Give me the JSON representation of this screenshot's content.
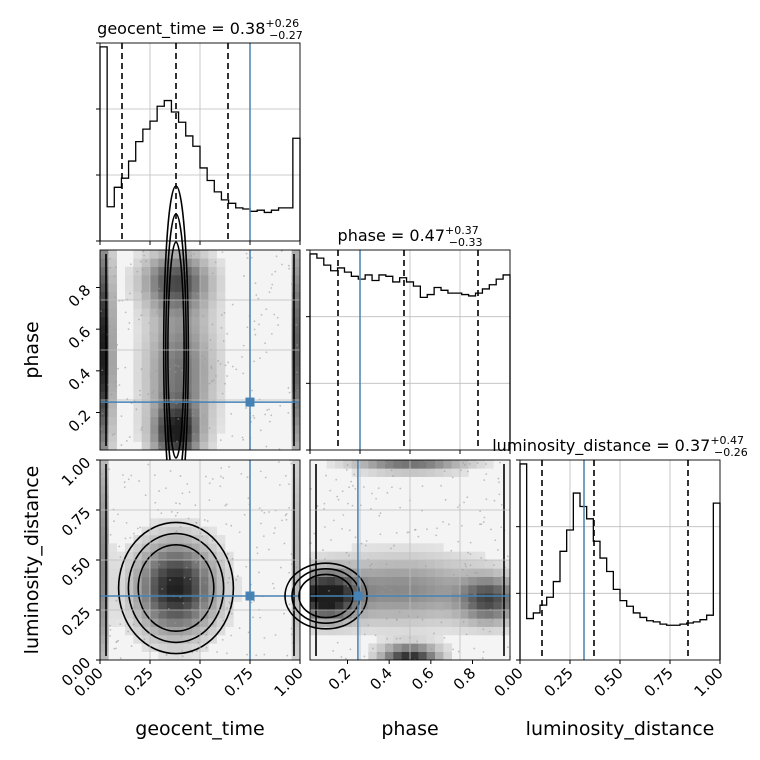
{
  "chart_data": {
    "type": "corner",
    "grid": true,
    "truth_color": "#4682b4",
    "parameters": [
      "geocent_time",
      "phase",
      "luminosity_distance"
    ],
    "truths": {
      "geocent_time": 0.75,
      "phase": 0.25,
      "luminosity_distance": 0.32
    },
    "diagonal": [
      {
        "param": "geocent_time",
        "title": {
          "prefix": "geocent_time = 0.38",
          "sup": "+0.26",
          "sub": "−0.27"
        },
        "xlim": [
          0,
          1
        ],
        "quantiles": [
          0.11,
          0.38,
          0.64
        ],
        "hist": [
          1.7,
          0.3,
          0.47,
          0.55,
          0.7,
          0.87,
          0.98,
          1.05,
          1.18,
          1.23,
          1.13,
          1.04,
          0.92,
          0.83,
          0.64,
          0.53,
          0.43,
          0.36,
          0.33,
          0.29,
          0.28,
          0.26,
          0.27,
          0.25,
          0.27,
          0.29,
          0.29,
          0.9
        ]
      },
      {
        "param": "phase",
        "title": {
          "prefix": "phase = 0.47",
          "sup": "+0.37",
          "sub": "−0.33"
        },
        "xlim": [
          0,
          1
        ],
        "quantiles": [
          0.14,
          0.47,
          0.84
        ],
        "hist": [
          1.4,
          1.37,
          1.32,
          1.28,
          1.3,
          1.27,
          1.24,
          1.22,
          1.25,
          1.21,
          1.25,
          1.24,
          1.2,
          1.23,
          1.2,
          1.17,
          1.09,
          1.11,
          1.16,
          1.14,
          1.12,
          1.12,
          1.11,
          1.1,
          1.12,
          1.15,
          1.18,
          1.22,
          1.25
        ]
      },
      {
        "param": "luminosity_distance",
        "title": {
          "prefix": "luminosity_distance = 0.37",
          "sup": "+0.47",
          "sub": "−0.26"
        },
        "xlim": [
          0,
          1
        ],
        "quantiles": [
          0.11,
          0.37,
          0.84
        ],
        "hist": [
          1.75,
          0.37,
          0.42,
          0.49,
          0.56,
          0.7,
          0.97,
          1.16,
          1.49,
          1.37,
          1.26,
          1.06,
          0.91,
          0.79,
          0.63,
          0.53,
          0.48,
          0.42,
          0.38,
          0.35,
          0.34,
          0.32,
          0.31,
          0.31,
          0.32,
          0.33,
          0.34,
          0.36,
          0.4,
          1.4
        ]
      }
    ],
    "panels": [
      {
        "x": "geocent_time",
        "y": "phase",
        "xlim": [
          0,
          1
        ],
        "ylim": [
          0.02,
          0.98
        ],
        "yticks": [
          "0.2",
          "0.4",
          "0.6",
          "0.8"
        ],
        "density_blobs": [
          {
            "x": 0.02,
            "y": 0.5,
            "sx": 0.03,
            "sy": 0.4,
            "w": 1.0
          },
          {
            "x": 0.38,
            "y": 0.85,
            "sx": 0.12,
            "sy": 0.1,
            "w": 0.7
          },
          {
            "x": 0.4,
            "y": 0.4,
            "sx": 0.12,
            "sy": 0.25,
            "w": 0.6
          },
          {
            "x": 0.38,
            "y": 0.08,
            "sx": 0.08,
            "sy": 0.1,
            "w": 0.8
          },
          {
            "x": 0.98,
            "y": 0.5,
            "sx": 0.02,
            "sy": 0.4,
            "w": 0.7
          }
        ]
      },
      {
        "x": "geocent_time",
        "y": "luminosity_distance",
        "xlim": [
          0,
          1
        ],
        "ylim": [
          0,
          1
        ],
        "xticks": [
          "0.00",
          "0.25",
          "0.50",
          "0.75",
          "1.00"
        ],
        "yticks": [
          "0.00",
          "0.25",
          "0.50",
          "0.75",
          "1.00"
        ],
        "density_blobs": [
          {
            "x": 0.38,
            "y": 0.36,
            "sx": 0.14,
            "sy": 0.16,
            "w": 1.0
          },
          {
            "x": 0.02,
            "y": 0.5,
            "sx": 0.02,
            "sy": 0.45,
            "w": 0.5
          },
          {
            "x": 0.98,
            "y": 0.5,
            "sx": 0.02,
            "sy": 0.45,
            "w": 0.3
          }
        ]
      },
      {
        "x": "phase",
        "y": "luminosity_distance",
        "xlim": [
          0.02,
          0.98
        ],
        "ylim": [
          0,
          1
        ],
        "xticks": [
          "0.2",
          "0.4",
          "0.6",
          "0.8"
        ],
        "density_blobs": [
          {
            "x": 0.08,
            "y": 0.32,
            "sx": 0.1,
            "sy": 0.08,
            "w": 1.0
          },
          {
            "x": 0.5,
            "y": 0.02,
            "sx": 0.1,
            "sy": 0.04,
            "w": 0.9
          },
          {
            "x": 0.5,
            "y": 0.98,
            "sx": 0.2,
            "sy": 0.03,
            "w": 0.6
          },
          {
            "x": 0.9,
            "y": 0.3,
            "sx": 0.1,
            "sy": 0.08,
            "w": 0.7
          },
          {
            "x": 0.45,
            "y": 0.35,
            "sx": 0.3,
            "sy": 0.12,
            "w": 0.5
          }
        ]
      }
    ]
  }
}
